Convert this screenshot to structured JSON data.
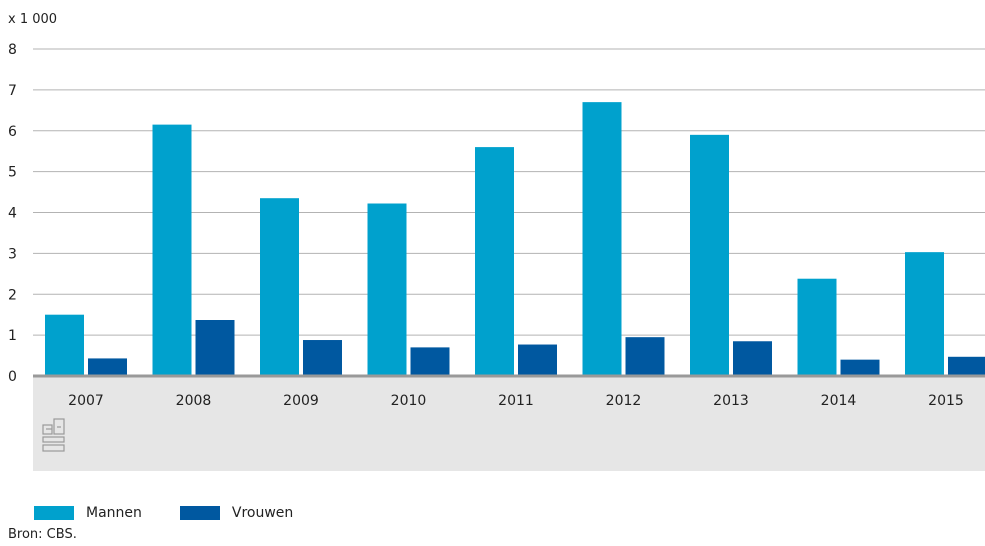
{
  "chart_data": {
    "type": "bar",
    "unit_label": "x 1 000",
    "categories": [
      "2007",
      "2008",
      "2009",
      "2010",
      "2011",
      "2012",
      "2013",
      "2014",
      "2015"
    ],
    "series": [
      {
        "name": "Mannen",
        "color": "#00a1cd",
        "values": [
          1.5,
          6.15,
          4.35,
          4.22,
          5.6,
          6.7,
          5.9,
          2.38,
          3.03
        ]
      },
      {
        "name": "Vrouwen",
        "color": "#0058a0",
        "values": [
          0.43,
          1.37,
          0.88,
          0.7,
          0.77,
          0.95,
          0.85,
          0.4,
          0.47
        ]
      }
    ],
    "ylim": [
      0,
      8
    ],
    "yticks": [
      "0",
      "1",
      "2",
      "3",
      "4",
      "5",
      "6",
      "7",
      "8"
    ],
    "grid": true,
    "legend_position": "bottom-left"
  },
  "source": "Bron: CBS."
}
